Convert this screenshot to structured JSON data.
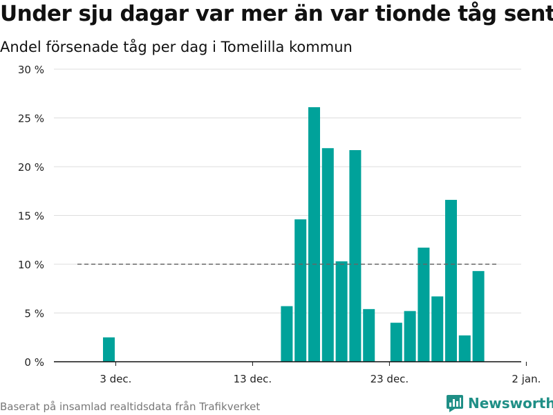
{
  "title": "Under sju dagar var mer än var tionde tåg sent",
  "subtitle": "Andel försenade tåg per dag i Tomelilla kommun",
  "source": "Baserat på insamlad realtidsdata från Trafikverket",
  "brand": {
    "name": "Newsworthy",
    "icon": "newsworthy-logo-icon",
    "color": "#1f8f86"
  },
  "chart_data": {
    "type": "bar",
    "bar_color": "#00a29a",
    "reference_line": {
      "value": 10,
      "style": "dashed",
      "color": "#666666"
    },
    "ylim": [
      0,
      30
    ],
    "y_ticks": [
      0,
      5,
      10,
      15,
      20,
      25,
      30
    ],
    "y_tick_labels": [
      "0 %",
      "5 %",
      "10 %",
      "15 %",
      "20 %",
      "25 %",
      "30 %"
    ],
    "x_ticks": [
      {
        "day": 3,
        "label": "3 dec."
      },
      {
        "day": 13,
        "label": "13 dec."
      },
      {
        "day": 23,
        "label": "23 dec."
      },
      {
        "day": 33,
        "label": "2 jan."
      }
    ],
    "xlim": [
      0,
      33
    ],
    "values": [
      {
        "day": 2.5,
        "value": 2.5
      },
      {
        "day": 15.5,
        "value": 5.7
      },
      {
        "day": 16.5,
        "value": 14.6
      },
      {
        "day": 17.5,
        "value": 26.1
      },
      {
        "day": 18.5,
        "value": 21.9
      },
      {
        "day": 19.5,
        "value": 10.3
      },
      {
        "day": 20.5,
        "value": 21.7
      },
      {
        "day": 21.5,
        "value": 5.4
      },
      {
        "day": 23.5,
        "value": 4.0
      },
      {
        "day": 24.5,
        "value": 5.2
      },
      {
        "day": 25.5,
        "value": 11.7
      },
      {
        "day": 26.5,
        "value": 6.7
      },
      {
        "day": 27.5,
        "value": 16.6
      },
      {
        "day": 28.5,
        "value": 2.7
      },
      {
        "day": 29.5,
        "value": 9.3
      }
    ]
  }
}
